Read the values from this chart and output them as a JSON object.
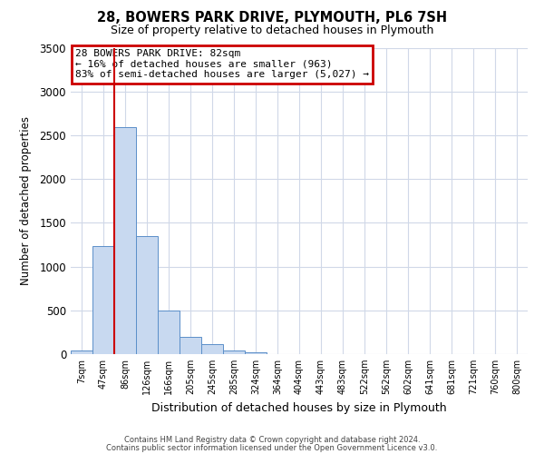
{
  "title_line1": "28, BOWERS PARK DRIVE, PLYMOUTH, PL6 7SH",
  "title_line2": "Size of property relative to detached houses in Plymouth",
  "xlabel": "Distribution of detached houses by size in Plymouth",
  "ylabel": "Number of detached properties",
  "bar_labels": [
    "7sqm",
    "47sqm",
    "86sqm",
    "126sqm",
    "166sqm",
    "205sqm",
    "245sqm",
    "285sqm",
    "324sqm",
    "364sqm",
    "404sqm",
    "443sqm",
    "483sqm",
    "522sqm",
    "562sqm",
    "602sqm",
    "641sqm",
    "681sqm",
    "721sqm",
    "760sqm",
    "800sqm"
  ],
  "bar_values": [
    40,
    1230,
    2590,
    1350,
    500,
    200,
    110,
    40,
    20,
    5,
    2,
    0,
    0,
    0,
    0,
    0,
    0,
    0,
    0,
    0,
    0
  ],
  "bar_color": "#c8d9f0",
  "bar_edge_color": "#5b8fc9",
  "marker_label_line1": "28 BOWERS PARK DRIVE: 82sqm",
  "marker_label_line2": "← 16% of detached houses are smaller (963)",
  "marker_label_line3": "83% of semi-detached houses are larger (5,027) →",
  "annotation_box_edge": "#cc0000",
  "marker_line_color": "#cc0000",
  "ylim": [
    0,
    3500
  ],
  "yticks": [
    0,
    500,
    1000,
    1500,
    2000,
    2500,
    3000,
    3500
  ],
  "footer_line1": "Contains HM Land Registry data © Crown copyright and database right 2024.",
  "footer_line2": "Contains public sector information licensed under the Open Government Licence v3.0.",
  "background_color": "#ffffff",
  "grid_color": "#d0d8e8"
}
